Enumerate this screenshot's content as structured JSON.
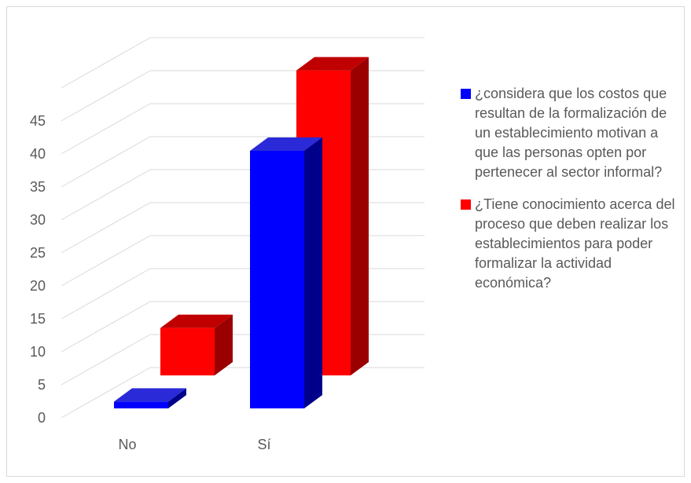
{
  "chart_data": {
    "type": "bar",
    "variant": "3d-column",
    "title": "",
    "xlabel": "",
    "ylabel": "",
    "categories": [
      "No",
      "Sí"
    ],
    "yticks": [
      "0",
      "5",
      "10",
      "15",
      "20",
      "25",
      "30",
      "35",
      "40",
      "45"
    ],
    "ylim": [
      0,
      50
    ],
    "grid": true,
    "legend_position": "right",
    "series": [
      {
        "name": "¿considera que los costos que resultan de la formalización de un establecimiento motivan a que las personas opten por pertenecer al sector informal?",
        "color": "#0000ff",
        "values": [
          1,
          38
        ]
      },
      {
        "name": "¿Tiene conocimiento acerca del proceso que deben realizar los establecimientos para poder formalizar la actividad económica?",
        "color": "#ff0000",
        "values": [
          7,
          45
        ]
      }
    ]
  }
}
